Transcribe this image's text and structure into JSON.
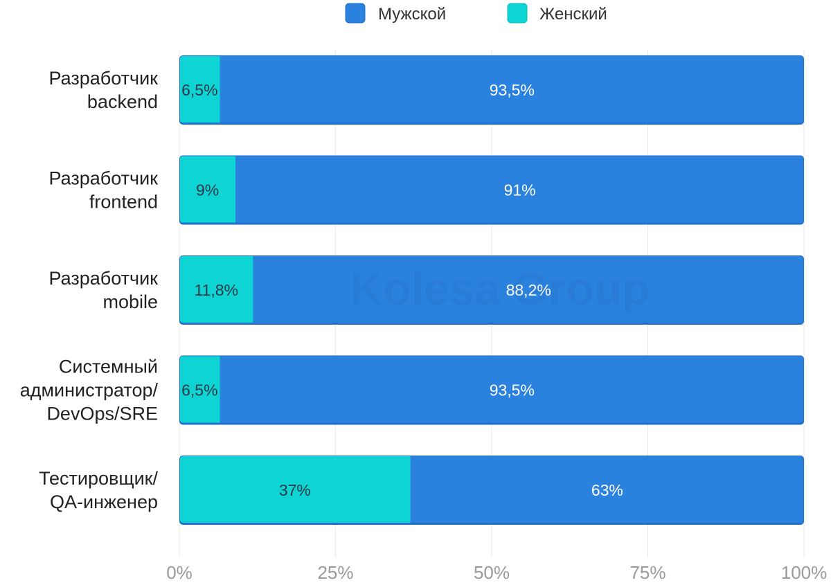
{
  "chart_data": {
    "type": "bar",
    "orientation": "horizontal",
    "stacked": true,
    "categories": [
      [
        "Разработчик",
        "backend"
      ],
      [
        "Разработчик",
        "frontend"
      ],
      [
        "Разработчик",
        "mobile"
      ],
      [
        "Системный",
        "администратор/",
        "DevOps/SRE"
      ],
      [
        "Тестировщик/",
        "QA-инженер"
      ]
    ],
    "series": [
      {
        "name": "Женский",
        "color": "#0ed4d4",
        "values": [
          6.5,
          9,
          11.8,
          6.5,
          37
        ],
        "labels": [
          "6,5%",
          "9%",
          "11,8%",
          "6,5%",
          "37%"
        ],
        "label_color": "#2b3a4a"
      },
      {
        "name": "Мужской",
        "color": "#2b82de",
        "values": [
          93.5,
          91,
          88.2,
          93.5,
          63
        ],
        "labels": [
          "93,5%",
          "91%",
          "88,2%",
          "93,5%",
          "63%"
        ],
        "label_color": "#ffffff"
      }
    ],
    "legend": [
      "Мужской",
      "Женский"
    ],
    "legend_position": "top-center",
    "xlim": [
      0,
      100
    ],
    "xticks": [
      0,
      25,
      50,
      75,
      100
    ],
    "xtick_labels": [
      "0%",
      "25%",
      "50%",
      "75%",
      "100%"
    ],
    "grid": true,
    "title": "",
    "xlabel": "",
    "ylabel": "",
    "watermark": "Kolesa Group"
  }
}
